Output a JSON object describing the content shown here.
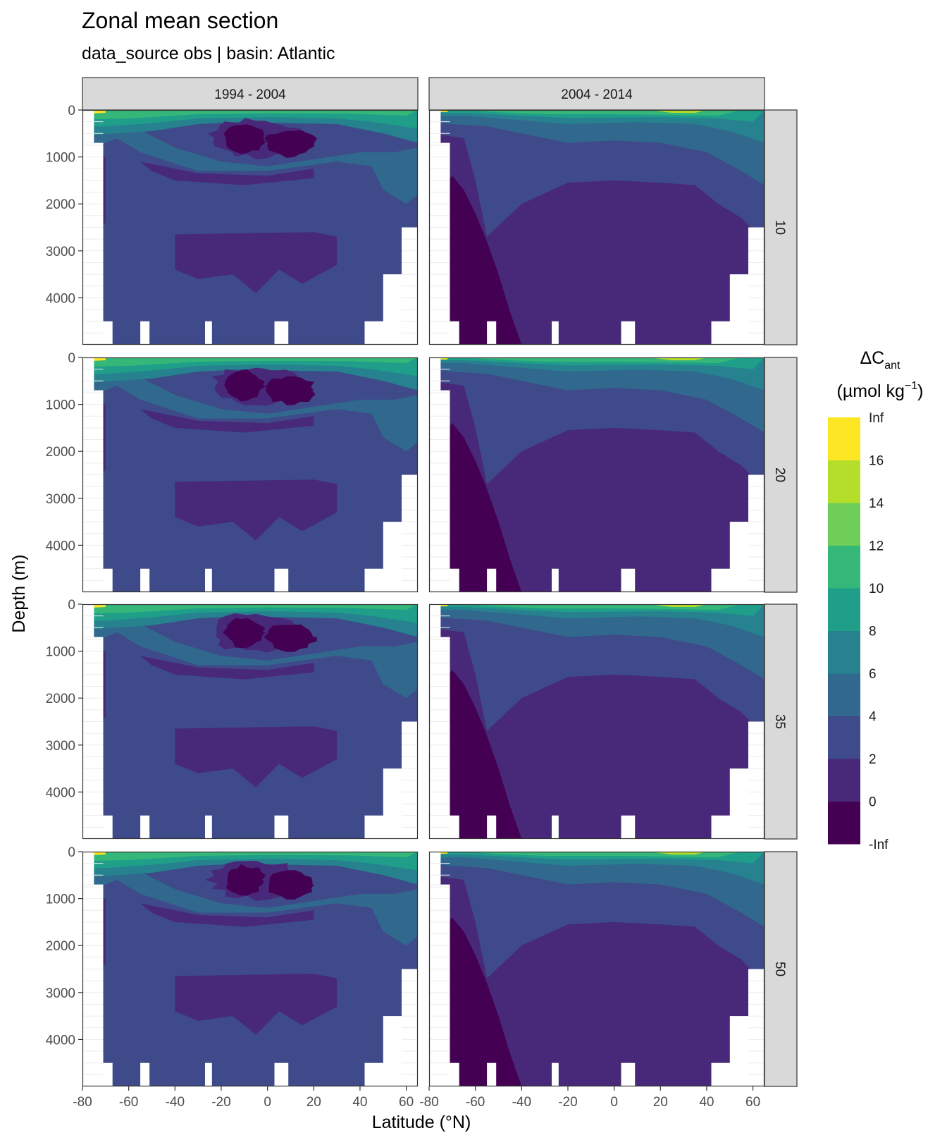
{
  "chart_data": {
    "type": "heatmap",
    "title": "Zonal mean section",
    "subtitle": "data_source obs | basin: Atlantic",
    "xlabel": "Latitude (°N)",
    "ylabel": "Depth (m)",
    "xlim": [
      -80,
      65
    ],
    "ylim": [
      0,
      5000
    ],
    "x_ticks": [
      -80,
      -60,
      -40,
      -20,
      0,
      20,
      40,
      60
    ],
    "x_tick_labels": [
      "-80",
      "-60",
      "-40",
      "-20",
      "0",
      "20",
      "40",
      "60"
    ],
    "y_ticks": [
      0,
      1000,
      2000,
      3000,
      4000
    ],
    "y_tick_labels": [
      "0",
      "1000",
      "2000",
      "3000",
      "4000"
    ],
    "y_reversed": true,
    "grid": true,
    "columns": [
      "1994 - 2004",
      "2004 - 2014"
    ],
    "rows": [
      "10",
      "20",
      "35",
      "50"
    ],
    "legend": {
      "title_main": "ΔC",
      "title_sub": "ant",
      "title_unit_pre": "(µmol kg",
      "title_unit_sup": "−1",
      "title_unit_post": ")",
      "placement": "right",
      "bins": [
        {
          "label": "-Inf",
          "color": "#440154"
        },
        {
          "label": "0",
          "color": "#482878"
        },
        {
          "label": "2",
          "color": "#3e4a89"
        },
        {
          "label": "4",
          "color": "#31688e"
        },
        {
          "label": "6",
          "color": "#26828e"
        },
        {
          "label": "8",
          "color": "#1f9e89"
        },
        {
          "label": "10",
          "color": "#35b779"
        },
        {
          "label": "12",
          "color": "#6ece58"
        },
        {
          "label": "14",
          "color": "#b5de2b"
        },
        {
          "label": "16",
          "color": "#fde725"
        }
      ],
      "top_label": "Inf"
    },
    "no_data_bands": [
      {
        "lat": [
          -80,
          -75
        ],
        "depth": [
          0,
          700
        ]
      },
      {
        "lat": [
          -80,
          -71
        ],
        "depth": [
          700,
          5000
        ]
      },
      {
        "lat": [
          -80,
          -67
        ],
        "depth": [
          4500,
          5000
        ]
      },
      {
        "lat": [
          -55,
          -51
        ],
        "depth": [
          4500,
          5000
        ]
      },
      {
        "lat": [
          -27,
          -24
        ],
        "depth": [
          4500,
          5000
        ]
      },
      {
        "lat": [
          3,
          9
        ],
        "depth": [
          4500,
          5000
        ]
      },
      {
        "lat": [
          42,
          65
        ],
        "depth": [
          4500,
          5000
        ]
      },
      {
        "lat": [
          50,
          65
        ],
        "depth": [
          3500,
          5000
        ]
      },
      {
        "lat": [
          58,
          65
        ],
        "depth": [
          2500,
          5000
        ]
      }
    ]
  }
}
